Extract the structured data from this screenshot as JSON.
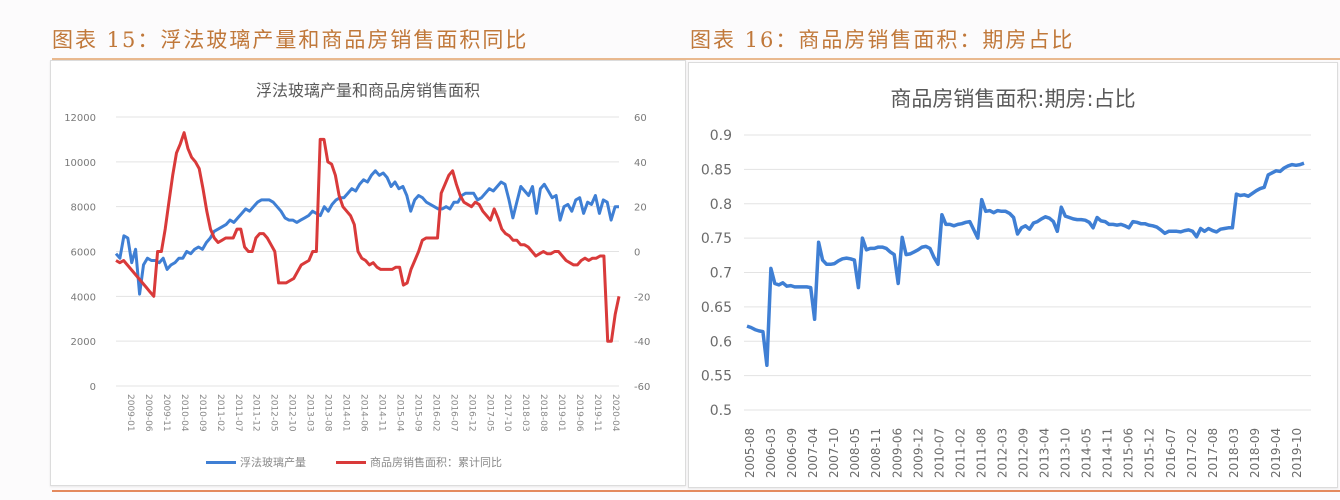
{
  "figures": [
    {
      "label": "图表 15：浮法玻璃产量和商品房销售面积同比"
    },
    {
      "label": "图表 16：商品房销售面积：期房占比"
    }
  ],
  "colors": {
    "blue": "#3f7fd4",
    "red": "#d93a3a",
    "title_orange": "#c0783a",
    "rule": "#e48a5e",
    "grid": "#e3e3e3"
  },
  "chart_data": [
    {
      "type": "line",
      "title": "浮法玻璃产量和商品房销售面积",
      "xlabel": "",
      "ylabel": "",
      "grid": true,
      "legend_position": "bottom",
      "y_left": {
        "ticks": [
          0,
          2000,
          4000,
          6000,
          8000,
          10000,
          12000
        ],
        "range": [
          0,
          12000
        ]
      },
      "y_right": {
        "ticks": [
          -60,
          -40,
          -20,
          0,
          20,
          40,
          60
        ],
        "range": [
          -60,
          60
        ]
      },
      "x_tick_labels": [
        "2009-01",
        "2009-06",
        "2009-11",
        "2010-04",
        "2010-09",
        "2011-02",
        "2011-07",
        "2011-12",
        "2012-05",
        "2012-10",
        "2013-03",
        "2013-08",
        "2014-01",
        "2014-06",
        "2014-11",
        "2015-04",
        "2015-09",
        "2016-02",
        "2016-07",
        "2016-12",
        "2017-05",
        "2017-10",
        "2018-03",
        "2018-08",
        "2019-01",
        "2019-06",
        "2019-11",
        "2020-04"
      ],
      "series": [
        {
          "name": "浮法玻璃产量",
          "axis": "left",
          "color": "#3f7fd4",
          "values": [
            5900,
            5700,
            6700,
            6600,
            5500,
            6100,
            4100,
            5400,
            5700,
            5600,
            5600,
            5500,
            5700,
            5200,
            5400,
            5500,
            5700,
            5700,
            6000,
            5900,
            6100,
            6200,
            6100,
            6400,
            6600,
            6900,
            7000,
            7100,
            7200,
            7400,
            7300,
            7500,
            7700,
            7900,
            7800,
            8000,
            8200,
            8300,
            8300,
            8300,
            8200,
            8000,
            7800,
            7500,
            7400,
            7400,
            7300,
            7400,
            7500,
            7600,
            7800,
            7700,
            7600,
            8000,
            7800,
            8100,
            8300,
            8400,
            8400,
            8600,
            8800,
            8700,
            9000,
            9200,
            9100,
            9400,
            9600,
            9400,
            9500,
            9300,
            8900,
            9100,
            8800,
            8900,
            8500,
            7800,
            8300,
            8500,
            8400,
            8200,
            8100,
            8000,
            7900,
            7900,
            8000,
            7900,
            8200,
            8200,
            8500,
            8600,
            8600,
            8600,
            8300,
            8400,
            8600,
            8800,
            8700,
            8900,
            9100,
            9000,
            8300,
            7500,
            8200,
            8900,
            8700,
            8500,
            8900,
            7700,
            8800,
            9000,
            8700,
            8400,
            8500,
            7400,
            8000,
            8100,
            7800,
            8300,
            8400,
            7700,
            8200,
            8100,
            8500,
            7700,
            8300,
            8200,
            7400,
            8000,
            8000
          ],
          "note": "approximate monthly values read from chart"
        },
        {
          "name": "商品房销售面积：累计同比",
          "axis": "right",
          "color": "#d93a3a",
          "values": [
            -4,
            -5,
            -4,
            -6,
            -8,
            -10,
            -12,
            -14,
            -16,
            -18,
            -20,
            0,
            0,
            10,
            22,
            34,
            44,
            48,
            53,
            46,
            42,
            40,
            37,
            28,
            18,
            10,
            6,
            4,
            5,
            6,
            6,
            6,
            10,
            10,
            2,
            0,
            0,
            6,
            8,
            8,
            6,
            3,
            0,
            -14,
            -14,
            -14,
            -13,
            -12,
            -9,
            -6,
            -5,
            -4,
            0,
            0,
            50,
            50,
            40,
            39,
            34,
            25,
            20,
            18,
            16,
            12,
            0,
            -3,
            -4,
            -6,
            -5,
            -7,
            -8,
            -8,
            -8,
            -8,
            -7,
            -7,
            -15,
            -14,
            -8,
            -4,
            0,
            5,
            6,
            6,
            6,
            6,
            26,
            30,
            34,
            36,
            30,
            25,
            22,
            21,
            20,
            22,
            21,
            18,
            16,
            14,
            19,
            15,
            10,
            8,
            7,
            5,
            5,
            3,
            3,
            2,
            0,
            -2,
            -1,
            0,
            -1,
            -1,
            0,
            0,
            -2,
            -4,
            -5,
            -6,
            -6,
            -4,
            -3,
            -4,
            -3,
            -3,
            -2,
            -2,
            -40,
            -40,
            -28,
            -20
          ],
          "note": "approximate monthly values read from chart"
        }
      ]
    },
    {
      "type": "line",
      "title": "商品房销售面积:期房:占比",
      "xlabel": "",
      "ylabel": "",
      "grid": true,
      "legend_position": "none",
      "ylim": [
        0.5,
        0.9
      ],
      "y_ticks": [
        0.5,
        0.55,
        0.6,
        0.65,
        0.7,
        0.75,
        0.8,
        0.85,
        0.9
      ],
      "x_tick_labels": [
        "2005-08",
        "2006-03",
        "2006-09",
        "2007-04",
        "2007-10",
        "2008-05",
        "2008-11",
        "2009-06",
        "2009-12",
        "2010-07",
        "2011-02",
        "2011-08",
        "2012-03",
        "2012-09",
        "2013-04",
        "2013-10",
        "2014-05",
        "2014-11",
        "2015-06",
        "2015-12",
        "2016-07",
        "2017-02",
        "2017-08",
        "2018-03",
        "2018-09",
        "2019-04",
        "2019-10"
      ],
      "series": [
        {
          "name": "期房占比",
          "color": "#3f7fd4",
          "values": [
            0.622,
            0.62,
            0.617,
            0.615,
            0.614,
            0.565,
            0.706,
            0.684,
            0.682,
            0.685,
            0.68,
            0.681,
            0.679,
            0.679,
            0.679,
            0.679,
            0.678,
            0.632,
            0.744,
            0.718,
            0.712,
            0.712,
            0.713,
            0.717,
            0.72,
            0.721,
            0.72,
            0.718,
            0.678,
            0.75,
            0.733,
            0.735,
            0.735,
            0.737,
            0.737,
            0.735,
            0.73,
            0.726,
            0.684,
            0.751,
            0.726,
            0.727,
            0.73,
            0.733,
            0.737,
            0.738,
            0.735,
            0.722,
            0.712,
            0.784,
            0.77,
            0.77,
            0.768,
            0.77,
            0.771,
            0.773,
            0.774,
            0.762,
            0.75,
            0.806,
            0.789,
            0.79,
            0.787,
            0.79,
            0.789,
            0.789,
            0.786,
            0.78,
            0.756,
            0.765,
            0.768,
            0.763,
            0.772,
            0.774,
            0.778,
            0.781,
            0.779,
            0.774,
            0.76,
            0.795,
            0.782,
            0.78,
            0.778,
            0.777,
            0.777,
            0.776,
            0.773,
            0.765,
            0.78,
            0.775,
            0.774,
            0.77,
            0.77,
            0.769,
            0.77,
            0.768,
            0.765,
            0.774,
            0.773,
            0.771,
            0.771,
            0.769,
            0.768,
            0.766,
            0.762,
            0.757,
            0.76,
            0.76,
            0.76,
            0.759,
            0.761,
            0.762,
            0.76,
            0.752,
            0.764,
            0.76,
            0.764,
            0.761,
            0.759,
            0.763,
            0.764,
            0.765,
            0.765,
            0.814,
            0.812,
            0.813,
            0.811,
            0.815,
            0.819,
            0.822,
            0.824,
            0.842,
            0.845,
            0.848,
            0.847,
            0.852,
            0.855,
            0.857,
            0.856,
            0.857,
            0.859
          ]
        }
      ]
    }
  ]
}
